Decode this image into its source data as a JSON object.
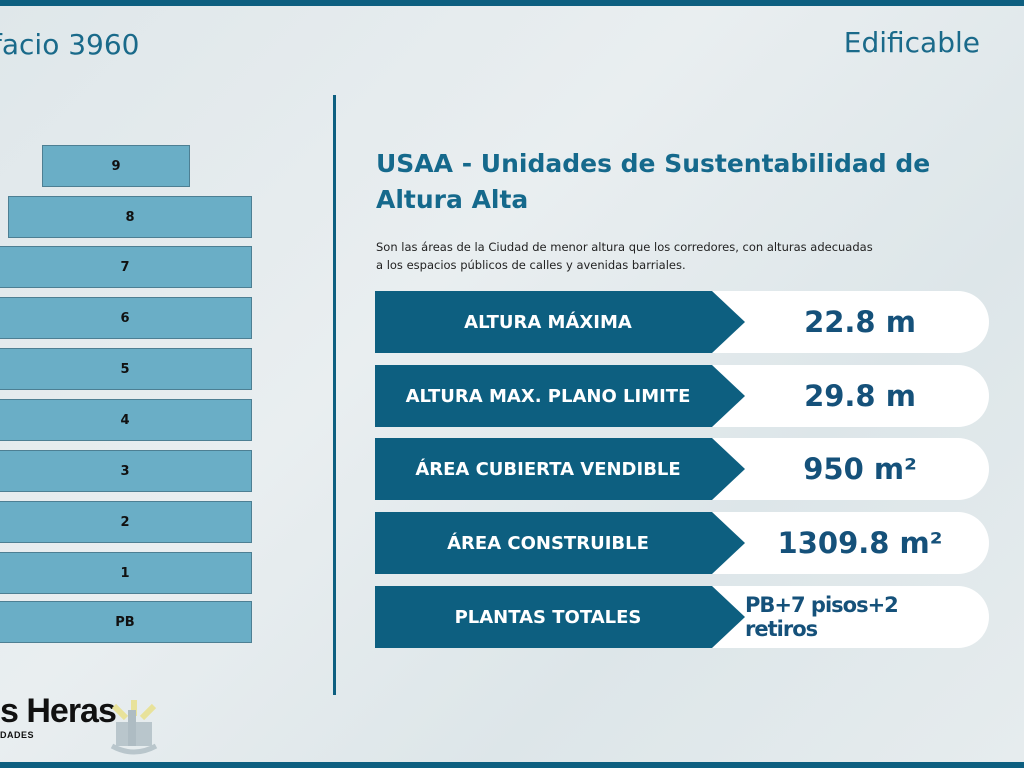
{
  "header": {
    "title": "facio 3960",
    "status": "Edificable"
  },
  "floors": [
    "9",
    "8",
    "7",
    "6",
    "5",
    "4",
    "3",
    "2",
    "1",
    "PB"
  ],
  "zone": {
    "heading": "USAA - Unidades de Sustentabilidad de Altura Alta",
    "description": "Son las áreas de la Ciudad de menor altura que los corredores, con alturas adecuadas a los espacios públicos de calles y avenidas barriales."
  },
  "metrics": [
    {
      "label": "ALTURA MÁXIMA",
      "value": "22.8 m"
    },
    {
      "label": "ALTURA MAX. PLANO LIMITE",
      "value": "29.8 m"
    },
    {
      "label": "ÁREA CUBIERTA VENDIBLE",
      "value": "950 m²"
    },
    {
      "label": "ÁREA CONSTRUIBLE",
      "value": "1309.8 m²"
    },
    {
      "label": "PLANTAS TOTALES",
      "value": "PB+7 pisos+2 retiros"
    }
  ],
  "logo": {
    "name": "s Heras",
    "sub": "DADES"
  },
  "colors": {
    "accent": "#0d5f80",
    "floor": "#6aaec6"
  }
}
